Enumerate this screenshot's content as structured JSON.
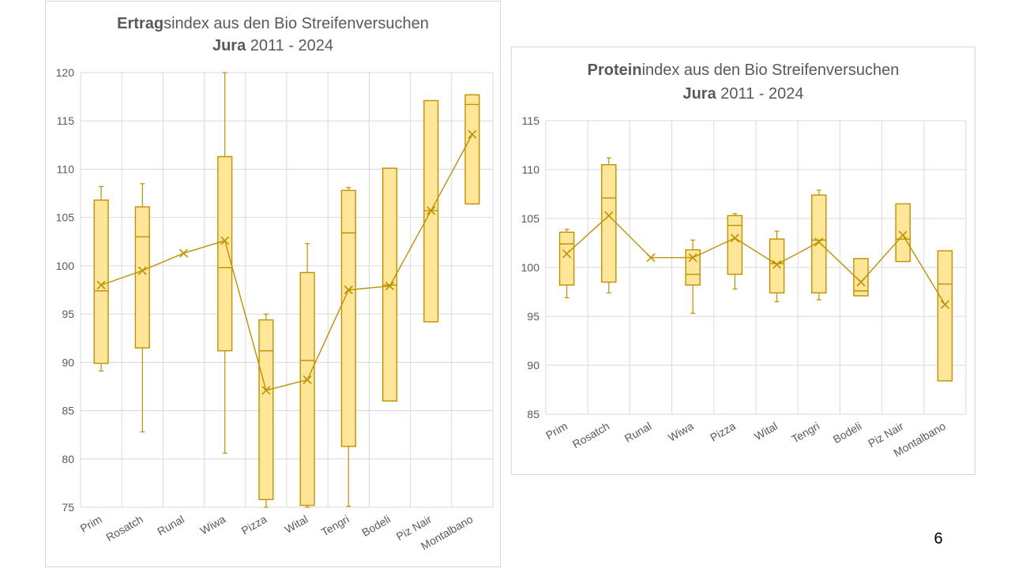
{
  "page_number": "6",
  "colors": {
    "box_fill": "#FFE699",
    "stroke": "#BF9000",
    "grid": "#D9D9D9",
    "text": "#595959"
  },
  "chart_data": [
    {
      "type": "box",
      "title_bold": "Ertrag",
      "title_rest": "sindex aus den Bio Streifenversuchen",
      "title_line2_bold": "Jura",
      "title_line2_rest": " 2011 - 2024",
      "categories": [
        "Prim",
        "Rosatch",
        "Runal",
        "Wiwa",
        "Pizza",
        "Wital",
        "Tengri",
        "Bodeli",
        "Piz Nair",
        "Montalbano"
      ],
      "ylim": [
        75,
        120
      ],
      "yticks": [
        75,
        80,
        85,
        90,
        95,
        100,
        105,
        110,
        115,
        120
      ],
      "grid": true,
      "legend": "none",
      "boxes": [
        {
          "min": 89.1,
          "q1": 89.9,
          "median": 97.4,
          "q3": 106.8,
          "max": 108.2,
          "mean": 98.0
        },
        {
          "min": 82.8,
          "q1": 91.5,
          "median": 103.0,
          "q3": 106.1,
          "max": 108.5,
          "mean": 99.5
        },
        {
          "min": 101.3,
          "q1": 101.3,
          "median": 101.3,
          "q3": 101.3,
          "max": 101.3,
          "mean": 101.3
        },
        {
          "min": 80.6,
          "q1": 91.2,
          "median": 99.8,
          "q3": 111.3,
          "max": 120.0,
          "mean": 102.6
        },
        {
          "min": 75.0,
          "q1": 75.8,
          "median": 91.2,
          "q3": 94.4,
          "max": 95.0,
          "mean": 87.1
        },
        {
          "min": 75.0,
          "q1": 75.2,
          "median": 90.2,
          "q3": 99.3,
          "max": 102.3,
          "mean": 88.2
        },
        {
          "min": 75.1,
          "q1": 81.3,
          "median": 103.4,
          "q3": 107.8,
          "max": 108.1,
          "mean": 97.5
        },
        {
          "min": 86.0,
          "q1": 86.0,
          "median": 98.0,
          "q3": 110.1,
          "max": 110.1,
          "mean": 97.9
        },
        {
          "min": 94.2,
          "q1": 94.2,
          "median": 105.7,
          "q3": 117.1,
          "max": 117.1,
          "mean": 105.7
        },
        {
          "min": 106.4,
          "q1": 106.4,
          "median": 116.7,
          "q3": 117.7,
          "max": 117.7,
          "mean": 113.6
        }
      ]
    },
    {
      "type": "box",
      "title_bold": "Protein",
      "title_rest": "index aus den Bio Streifenversuchen",
      "title_line2_bold": "Jura",
      "title_line2_rest": " 2011 - 2024",
      "categories": [
        "Prim",
        "Rosatch",
        "Runal",
        "Wiwa",
        "Pizza",
        "Wital",
        "Tengri",
        "Bodeli",
        "Piz Nair",
        "Montalbano"
      ],
      "ylim": [
        85,
        115
      ],
      "yticks": [
        85,
        90,
        95,
        100,
        105,
        110,
        115
      ],
      "grid": true,
      "legend": "none",
      "boxes": [
        {
          "min": 96.9,
          "q1": 98.2,
          "median": 102.4,
          "q3": 103.6,
          "max": 103.9,
          "mean": 101.4
        },
        {
          "min": 97.4,
          "q1": 98.5,
          "median": 107.1,
          "q3": 110.5,
          "max": 111.2,
          "mean": 105.3
        },
        {
          "min": 101.0,
          "q1": 101.0,
          "median": 101.0,
          "q3": 101.0,
          "max": 101.0,
          "mean": 101.0
        },
        {
          "min": 95.3,
          "q1": 98.2,
          "median": 99.3,
          "q3": 101.8,
          "max": 102.8,
          "mean": 101.0
        },
        {
          "min": 97.8,
          "q1": 99.3,
          "median": 104.3,
          "q3": 105.3,
          "max": 105.5,
          "mean": 103.0
        },
        {
          "min": 96.5,
          "q1": 97.4,
          "median": 100.4,
          "q3": 102.9,
          "max": 103.7,
          "mean": 100.3
        },
        {
          "min": 96.7,
          "q1": 97.4,
          "median": 102.8,
          "q3": 107.4,
          "max": 107.9,
          "mean": 102.6
        },
        {
          "min": 97.1,
          "q1": 97.1,
          "median": 97.6,
          "q3": 100.9,
          "max": 100.9,
          "mean": 98.5
        },
        {
          "min": 100.6,
          "q1": 100.6,
          "median": 102.9,
          "q3": 106.5,
          "max": 106.5,
          "mean": 103.3
        },
        {
          "min": 88.4,
          "q1": 88.4,
          "median": 98.3,
          "q3": 101.7,
          "max": 101.7,
          "mean": 96.2
        }
      ]
    }
  ]
}
